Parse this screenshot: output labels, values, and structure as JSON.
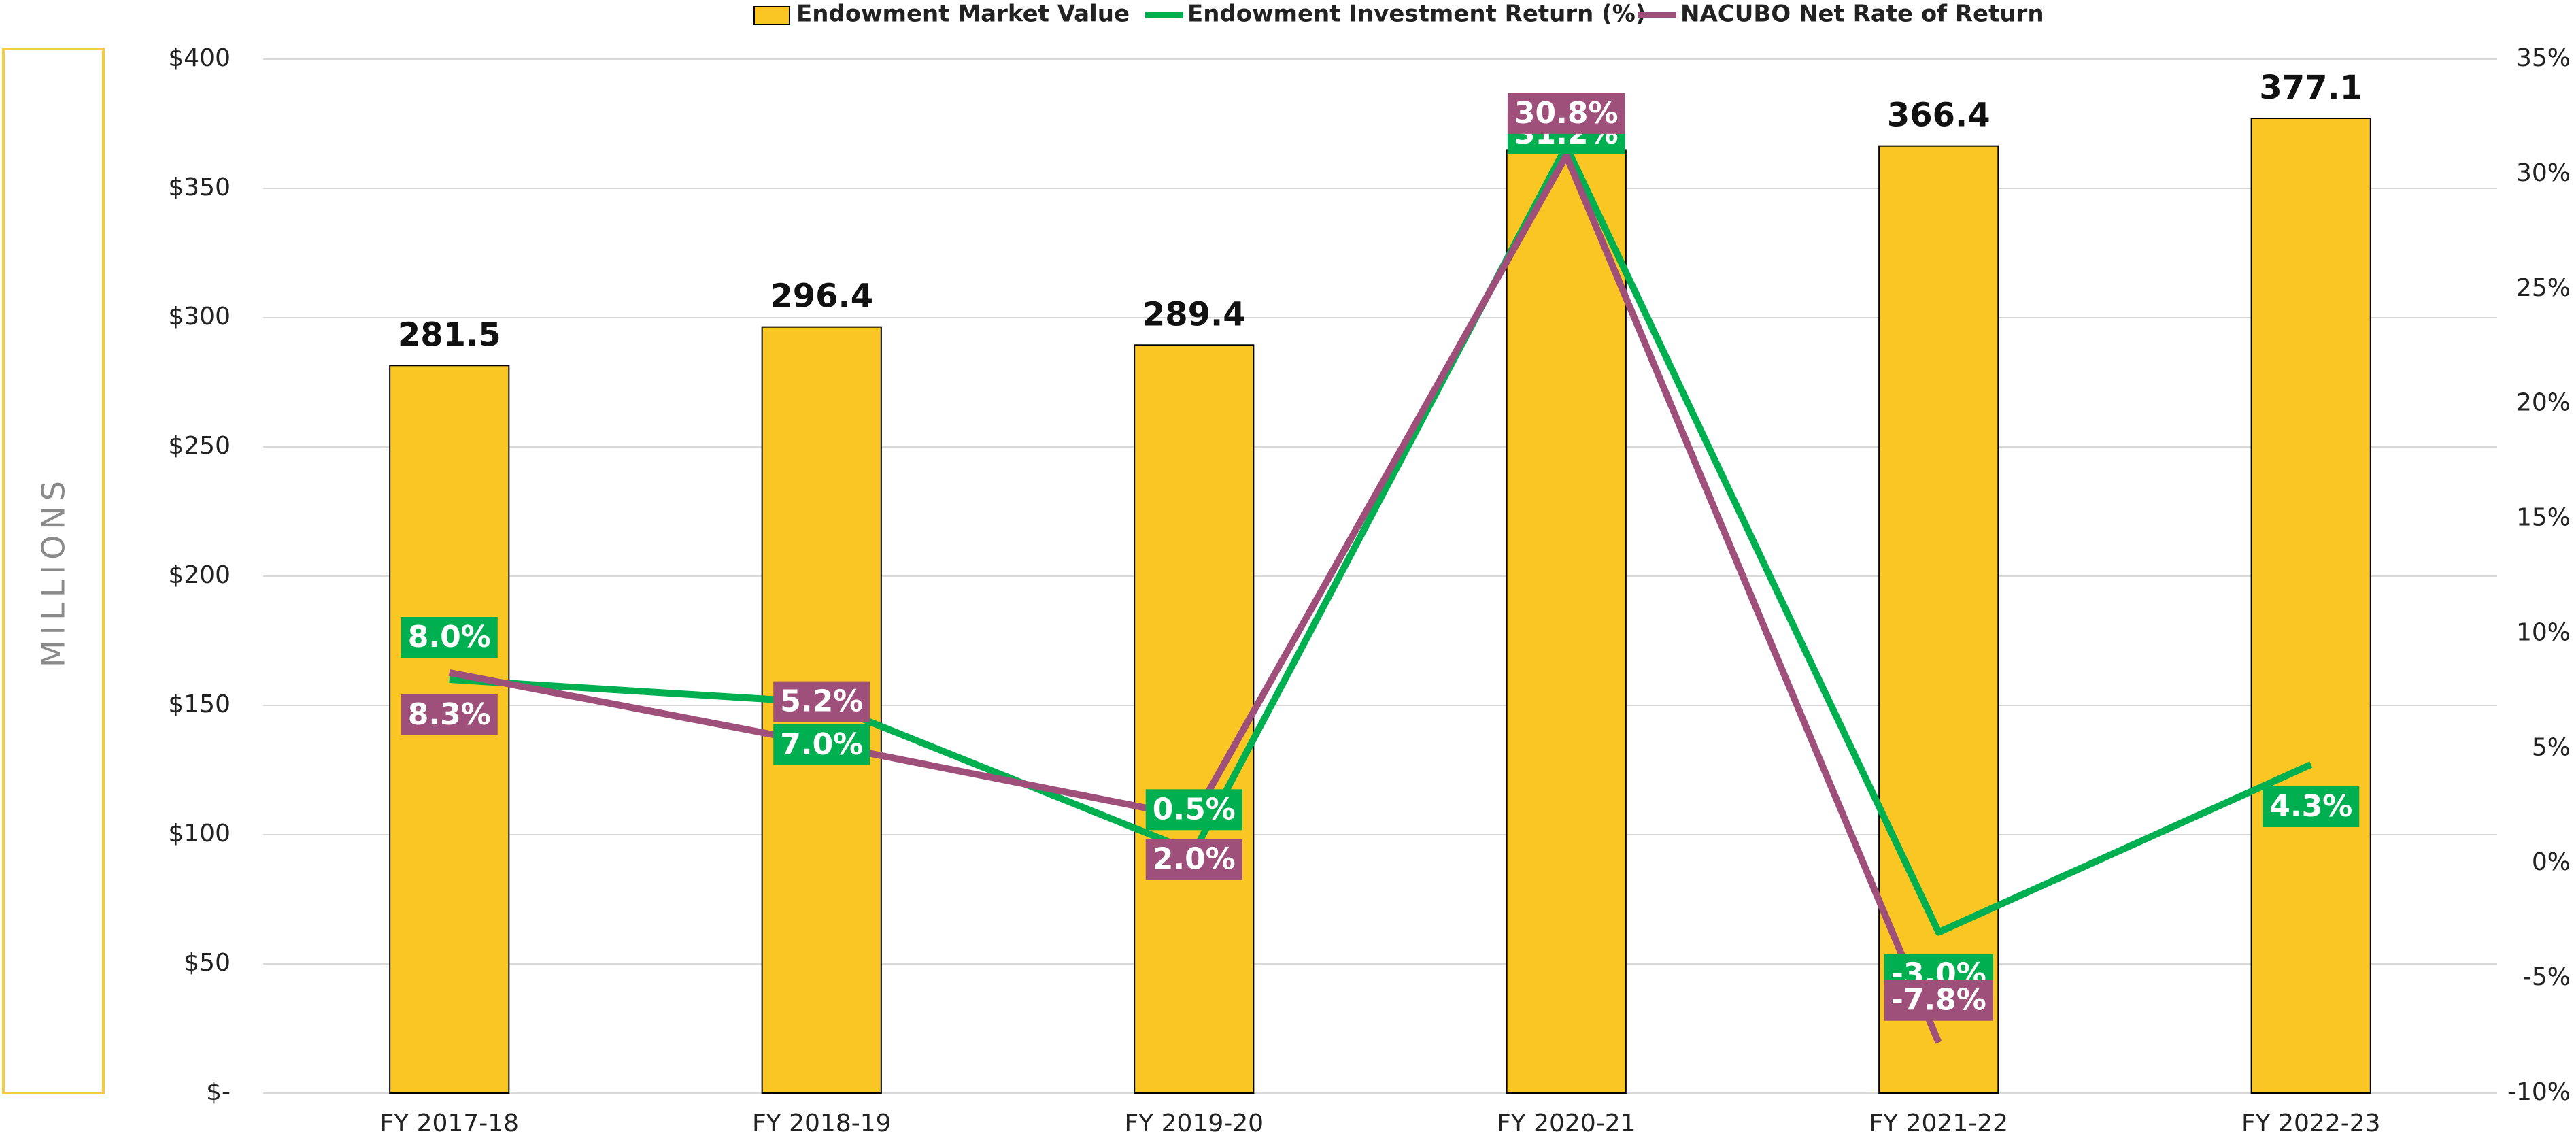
{
  "chart_data": {
    "type": "bar",
    "y_label": "MILLIONS",
    "categories": [
      "FY 2017-18",
      "FY 2018-19",
      "FY 2019-20",
      "FY 2020-21",
      "FY 2021-22",
      "FY 2022-23"
    ],
    "series": [
      {
        "name": "Endowment Market Value",
        "type": "bar",
        "color": "#f9c623",
        "values": [
          281.5,
          296.4,
          289.4,
          364.9,
          366.4,
          377.1
        ]
      },
      {
        "name": "Endowment Investment Return (%)",
        "type": "line",
        "axis": "y2",
        "color": "#00b050",
        "values": [
          8.0,
          7.0,
          0.5,
          31.2,
          -3.0,
          4.3
        ],
        "value_labels": [
          "8.0%",
          "7.0%",
          "0.5%",
          "31.2%",
          "-3.0%",
          "4.3%"
        ]
      },
      {
        "name": "NACUBO Net Rate of Return",
        "type": "line",
        "axis": "y2",
        "color": "#9e4f7a",
        "values": [
          8.3,
          5.2,
          2.0,
          30.8,
          -7.8,
          null
        ],
        "value_labels": [
          "8.3%",
          "5.2%",
          "2.0%",
          "30.8%",
          "-7.8%",
          null
        ]
      }
    ],
    "ylim": [
      0,
      400
    ],
    "yticks": [
      {
        "value": 0,
        "label": "$-"
      },
      {
        "value": 50,
        "label": "$50"
      },
      {
        "value": 100,
        "label": "$100"
      },
      {
        "value": 150,
        "label": "$150"
      },
      {
        "value": 200,
        "label": "$200"
      },
      {
        "value": 250,
        "label": "$250"
      },
      {
        "value": 300,
        "label": "$300"
      },
      {
        "value": 350,
        "label": "$350"
      },
      {
        "value": 400,
        "label": "$400"
      }
    ],
    "y2lim": [
      -10,
      35
    ],
    "y2ticks": [
      {
        "value": -10,
        "label": "-10%"
      },
      {
        "value": -5,
        "label": "-5%"
      },
      {
        "value": 0,
        "label": "0%"
      },
      {
        "value": 5,
        "label": "5%"
      },
      {
        "value": 10,
        "label": "10%"
      },
      {
        "value": 15,
        "label": "15%"
      },
      {
        "value": 20,
        "label": "20%"
      },
      {
        "value": 25,
        "label": "25%"
      },
      {
        "value": 30,
        "label": "30%"
      },
      {
        "value": 35,
        "label": "35%"
      }
    ],
    "grid": true,
    "legend": "top"
  }
}
